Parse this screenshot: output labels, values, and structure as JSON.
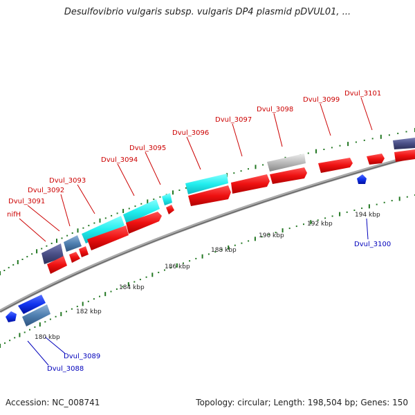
{
  "title": "Desulfovibrio vulgaris subsp. vulgaris DP4 plasmid pDVUL01, ...",
  "footer": {
    "accession": "Accession: NC_008741",
    "summary": "Topology: circular; Length: 198,504 bp; Genes: 150"
  },
  "colors": {
    "forward_gene": "#ee1111",
    "reverse_gene": "#1133ee",
    "rna_gene": "#22eeee",
    "dark_gene": "#4a4f86",
    "steel_gene": "#4f7fb0",
    "gray_gene": "#bbbbbb",
    "forward_label": "#cc0000",
    "reverse_label": "#0000bb",
    "tick": "#227722",
    "backbone": "#8a8a8a"
  },
  "tick_labels": [
    "180 kbp",
    "182 kbp",
    "184 kbp",
    "186 kbp",
    "188 kbp",
    "190 kbp",
    "192 kbp",
    "194 kbp"
  ],
  "gene_labels": {
    "forward": [
      "nifH",
      "Dvul_3091",
      "Dvul_3092",
      "Dvul_3093",
      "Dvul_3094",
      "Dvul_3095",
      "Dvul_3096",
      "Dvul_3097",
      "Dvul_3098",
      "Dvul_3099",
      "Dvul_3101"
    ],
    "reverse": [
      "Dvul_3088",
      "Dvul_3089",
      "Dvul_3100"
    ]
  }
}
